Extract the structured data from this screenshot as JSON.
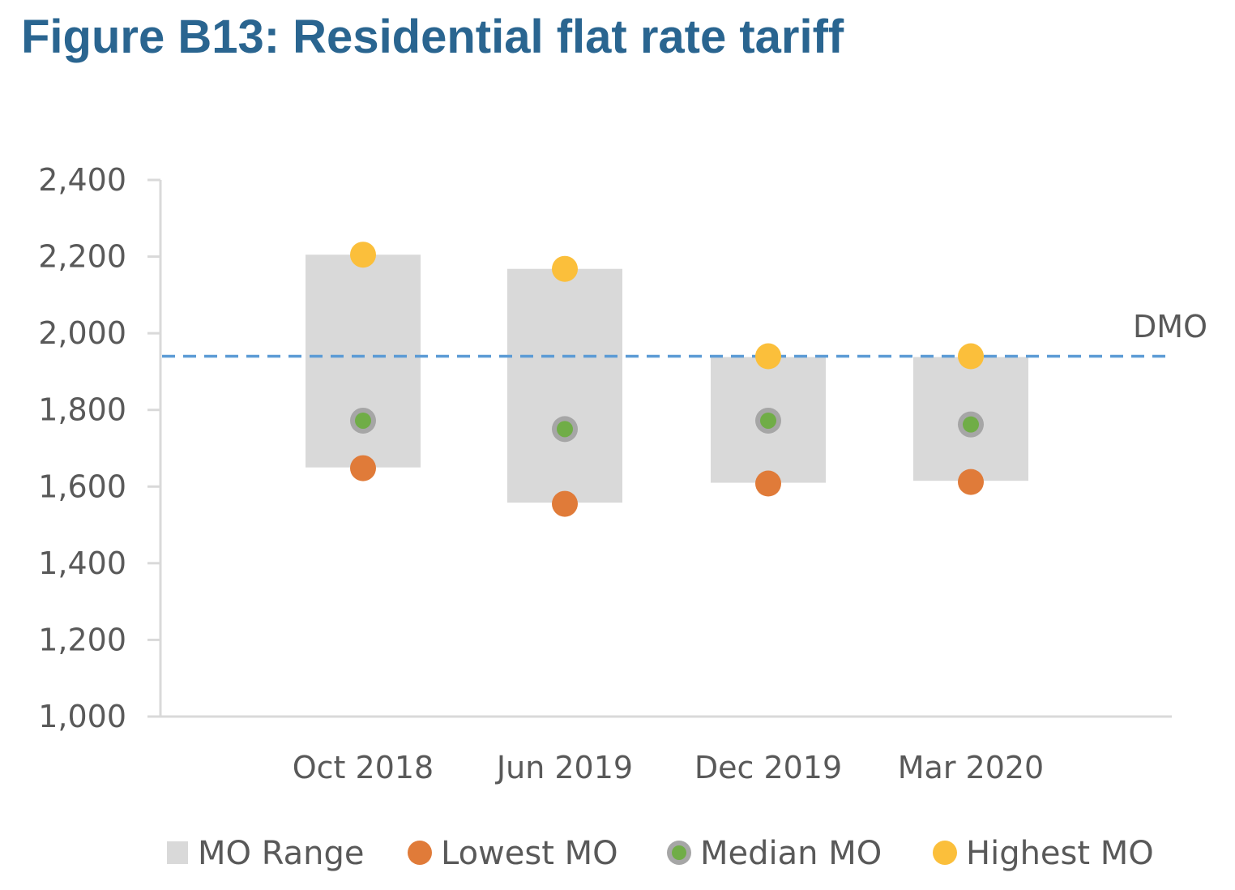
{
  "figure": {
    "title": "Figure B13: Residential flat rate tariff"
  },
  "chart_data": {
    "type": "scatter",
    "categories": [
      "Oct 2018",
      "Jun 2019",
      "Dec 2019",
      "Mar 2020"
    ],
    "range_bars": {
      "name": "MO Range",
      "low": [
        1650,
        1558,
        1610,
        1615
      ],
      "high": [
        2205,
        2168,
        1938,
        1938
      ]
    },
    "series": [
      {
        "name": "Lowest MO",
        "values": [
          1648,
          1555,
          1608,
          1612
        ],
        "color": "#e07b39"
      },
      {
        "name": "Median MO",
        "values": [
          1772,
          1750,
          1772,
          1762
        ],
        "color": "#70ad47"
      },
      {
        "name": "Highest MO",
        "values": [
          2205,
          2168,
          1940,
          1940
        ],
        "color": "#fbbf3b"
      }
    ],
    "reference_line": {
      "label": "DMO",
      "value": 1940,
      "color": "#5b9bd5"
    },
    "y_ticks": [
      "1,000",
      "1,200",
      "1,400",
      "1,600",
      "1,800",
      "2,000",
      "2,200",
      "2,400"
    ],
    "ylim": [
      1000,
      2400
    ],
    "xlabel": "",
    "ylabel": "",
    "grid": false,
    "legend_position": "bottom",
    "range_color": "#d9d9d9"
  }
}
